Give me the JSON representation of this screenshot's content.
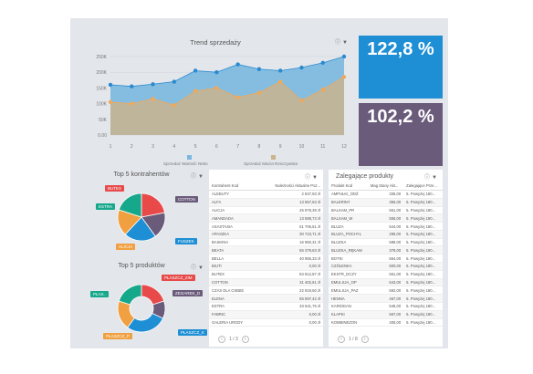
{
  "trend": {
    "title": "Trend sprzedaży",
    "y_ticks": [
      "250K",
      "200K",
      "150K",
      "100K",
      "50K",
      "0.00"
    ],
    "x_ticks": [
      "1",
      "2",
      "3",
      "4",
      "5",
      "6",
      "7",
      "8",
      "9",
      "10",
      "11",
      "12"
    ],
    "legend": [
      "Sprzedaż Wartość Netto",
      "Sprzedaż Marża Rzeczywista"
    ]
  },
  "kpi": {
    "top": "122,8 %",
    "bottom": "102,2 %"
  },
  "top5_kontrahentow": {
    "title": "Top 5 kontrahentów",
    "labels": [
      "BUTEX",
      "COTTON",
      "ESTRA",
      "FUSZEK",
      "ALICJA"
    ]
  },
  "top5_produktow": {
    "title": "Top 5 produktów",
    "labels": [
      "PŁASZCZ_ZIM",
      "ZEGAREK_D",
      "PŁAS..",
      "PŁASZCZ_K",
      "PŁASZCZ_P"
    ]
  },
  "naleznosci": {
    "headers": [
      "Kontrahent Kod",
      "Należności Aktualne Poz..."
    ],
    "rows": [
      [
        "ALEBUTY",
        "2 847,93 zł"
      ],
      [
        "ALFA",
        "13 557,63 zł"
      ],
      [
        "ALICJA",
        "25 978,39 zł"
      ],
      [
        "AMANDADA",
        "13 588,73 zł"
      ],
      [
        "ASASTASIA",
        "61 705,51 zł"
      ],
      [
        "APASZKA",
        "30 723,71 zł"
      ],
      [
        "BASKINA",
        "16 950,31 zł"
      ],
      [
        "BEATA",
        "55 379,63 zł"
      ],
      [
        "BELLA",
        "40 965,33 zł"
      ],
      [
        "BIUTI",
        "0,00 zł"
      ],
      [
        "BUTEX",
        "84 812,87 zł"
      ],
      [
        "COTTON",
        "31 402,61 zł"
      ],
      [
        "CZAS DLA CIEBIE",
        "22 919,50 zł"
      ],
      [
        "ELENA",
        "55 597,42 zł"
      ],
      [
        "ESTRA",
        "33 541,75 zł"
      ],
      [
        "FABRIC",
        "0,00 zł"
      ],
      [
        "GALERIA URODY",
        "0,00 zł"
      ]
    ],
    "page": "1 / 3"
  },
  "zalegajace": {
    "title": "Zalegające produkty",
    "headers": [
      "Produkt Kod",
      "Mag Stany Akt...",
      "Zalegające Prze..."
    ],
    "rows": [
      [
        "AMPUŁKI_ODŻ",
        "336,00",
        "5. Powyżej 180..."
      ],
      [
        "BALERINY",
        "356,00",
        "5. Powyżej 180..."
      ],
      [
        "BALSAM_PR",
        "551,00",
        "5. Powyżej 180..."
      ],
      [
        "BALSAM_W",
        "555,00",
        "5. Powyżej 180..."
      ],
      [
        "BLUZA",
        "544,00",
        "5. Powyżej 180..."
      ],
      [
        "BLUZA_POCHYL",
        "295,00",
        "5. Powyżej 180..."
      ],
      [
        "BLUZKA",
        "588,00",
        "5. Powyżej 180..."
      ],
      [
        "BLUZKA_RĘKAW",
        "378,00",
        "5. Powyżej 180..."
      ],
      [
        "BOTKI",
        "564,00",
        "5. Powyżej 180..."
      ],
      [
        "CZÓŁENKA",
        "600,00",
        "5. Powyżej 180..."
      ],
      [
        "EKSTR_DCZY",
        "551,00",
        "5. Powyżej 180..."
      ],
      [
        "EMULSJA_OP",
        "543,00",
        "5. Powyżej 180..."
      ],
      [
        "EMULSJA_PAZ",
        "592,00",
        "5. Powyżej 180..."
      ],
      [
        "HENNA",
        "467,00",
        "5. Powyżej 180..."
      ],
      [
        "KARDIGAN",
        "548,00",
        "5. Powyżej 180..."
      ],
      [
        "KLAPKI",
        "567,00",
        "5. Powyżej 180..."
      ],
      [
        "KOMBINEZON",
        "405,00",
        "5. Powyżej 180..."
      ]
    ],
    "page": "1 / 8"
  },
  "colors": {
    "blue_kpi": "#1e8fd5",
    "purple_kpi": "#6b5b7b",
    "area_blue": "#7ab8e0",
    "area_tan": "#c9b48e",
    "dot_blue": "#2a8ad0",
    "dot_tan": "#f0a95a",
    "pie1": [
      "#e84a4a",
      "#6b5b7b",
      "#1e8fd5",
      "#f0a040",
      "#16a88a"
    ],
    "pie2": [
      "#e84a4a",
      "#6b5b7b",
      "#1e8fd5",
      "#f0a040",
      "#16a88a"
    ]
  },
  "chart_data": [
    {
      "type": "area",
      "title": "Trend sprzedaży",
      "categories": [
        "1",
        "2",
        "3",
        "4",
        "5",
        "6",
        "7",
        "8",
        "9",
        "10",
        "11",
        "12"
      ],
      "ylim": [
        0,
        250000
      ],
      "series": [
        {
          "name": "Sprzedaż Wartość Netto",
          "values": [
            160000,
            155000,
            162000,
            170000,
            205000,
            200000,
            225000,
            210000,
            205000,
            215000,
            230000,
            250000
          ]
        },
        {
          "name": "Sprzedaż Marża Rzeczywista",
          "values": [
            105000,
            100000,
            115000,
            95000,
            140000,
            150000,
            120000,
            135000,
            170000,
            110000,
            145000,
            185000
          ]
        }
      ]
    },
    {
      "type": "pie",
      "title": "Top 5 kontrahentów",
      "categories": [
        "BUTEX",
        "COTTON",
        "FUSZEK",
        "ALICJA",
        "ESTRA"
      ],
      "values": [
        22,
        18,
        22,
        18,
        20
      ]
    },
    {
      "type": "pie",
      "title": "Top 5 produktów",
      "categories": [
        "PŁASZCZ_ZIM",
        "ZEGAREK_D",
        "PŁASZCZ_K",
        "PŁASZCZ_P",
        "PŁAS.."
      ],
      "values": [
        20,
        12,
        28,
        20,
        20
      ]
    }
  ]
}
